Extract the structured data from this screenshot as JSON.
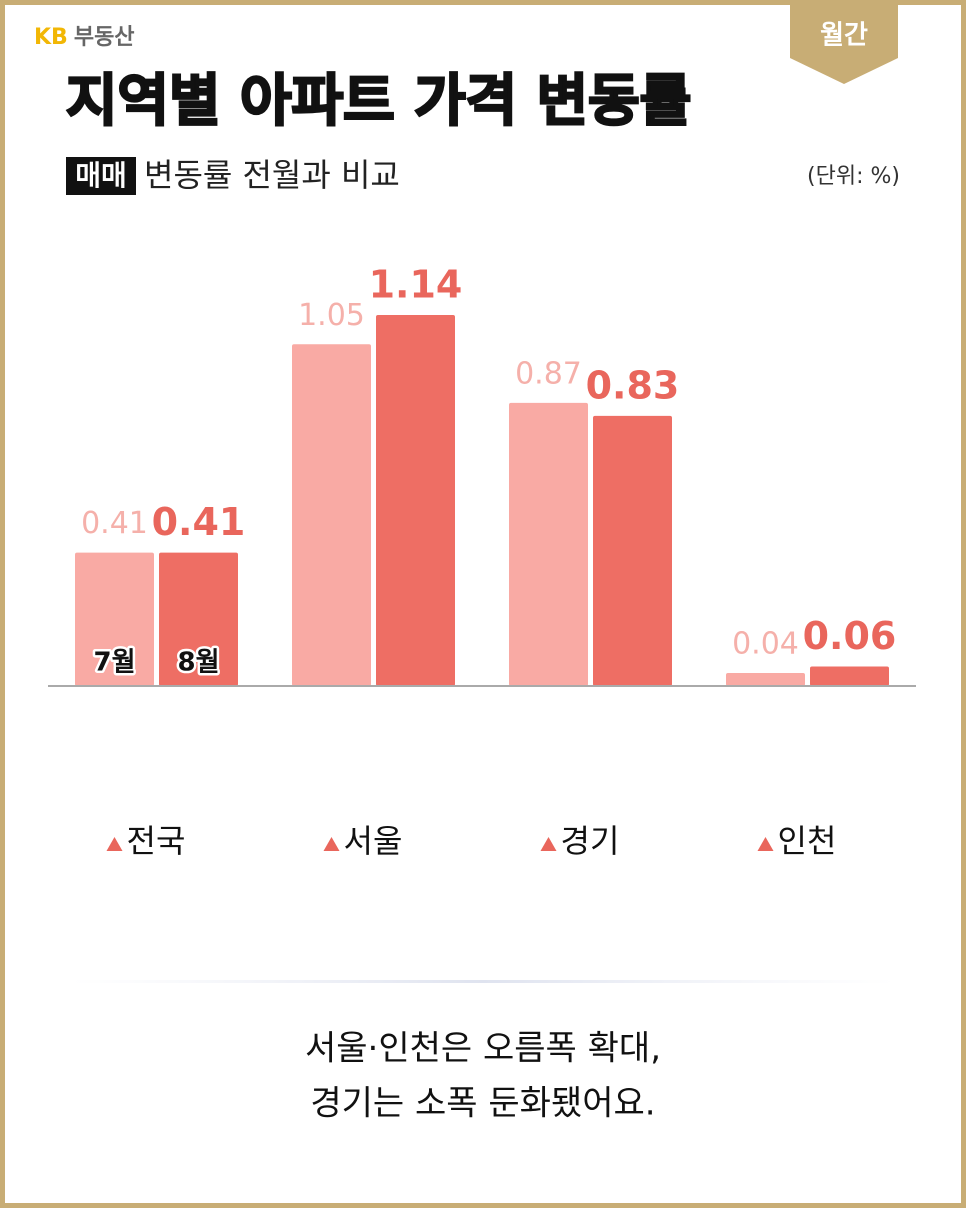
{
  "header": {
    "brand_mark": "KB",
    "brand_name": "부동산",
    "badge": "월간"
  },
  "chart_data": {
    "type": "bar",
    "title": "지역별 아파트 가격 변동률",
    "subtitle_tag": "매매",
    "subtitle": "변동률 전월과 비교",
    "unit": "(단위: %)",
    "categories": [
      "전국",
      "서울",
      "경기",
      "인천"
    ],
    "series": [
      {
        "name": "7월",
        "color": "#f9aaa4",
        "label_color": "#f5b0aa",
        "values": [
          0.41,
          1.05,
          0.87,
          0.04
        ]
      },
      {
        "name": "8월",
        "color": "#ee6e64",
        "label_color": "#e9665c",
        "values": [
          0.41,
          1.14,
          0.83,
          0.06
        ]
      }
    ]
  },
  "footer": {
    "lines": [
      "서울·인천은 오름폭 확대,",
      "경기는 소폭 둔화됐어요."
    ]
  }
}
